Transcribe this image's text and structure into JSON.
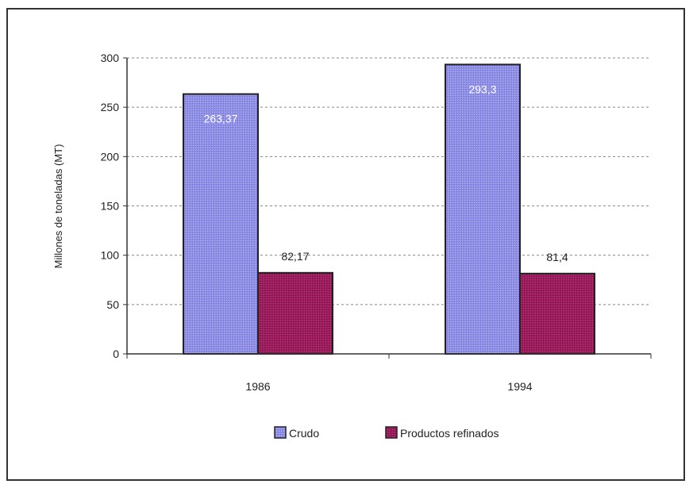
{
  "chart_data": {
    "type": "bar",
    "categories": [
      "1986",
      "1994"
    ],
    "series": [
      {
        "name": "Crudo",
        "values": [
          263.37,
          293.3
        ],
        "labels": [
          "263,37",
          "293,3"
        ],
        "color": "#8f8fe8"
      },
      {
        "name": "Productos refinados",
        "values": [
          82.17,
          81.4
        ],
        "labels": [
          "82,17",
          "81,4"
        ],
        "color": "#9b1d5e"
      }
    ],
    "title": "",
    "xlabel": "",
    "ylabel": "Millones de toneladas (MT)",
    "ylim": [
      0,
      300
    ],
    "yticks": [
      0,
      50,
      100,
      150,
      200,
      250,
      300
    ],
    "grid": true,
    "legend_position": "bottom"
  }
}
